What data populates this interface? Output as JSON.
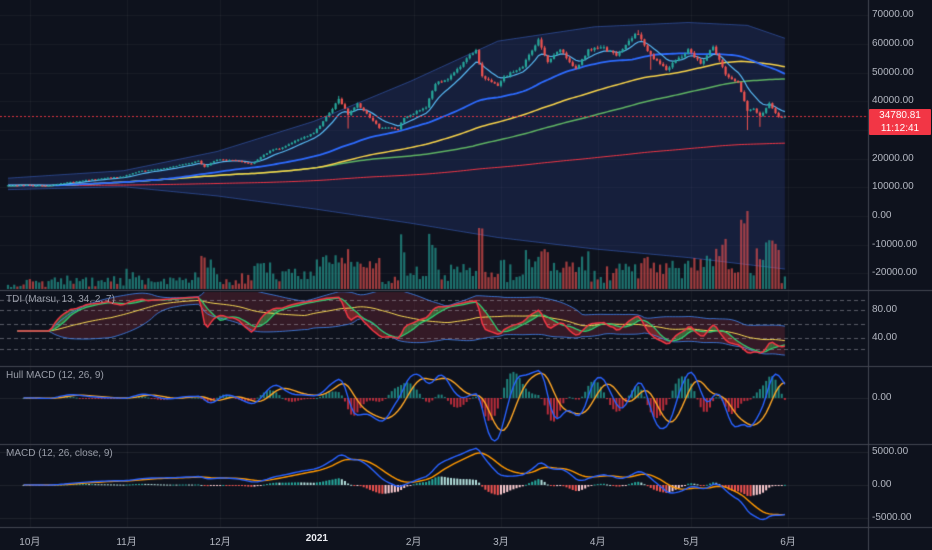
{
  "colors": {
    "background": "#0e121d",
    "up": "#26a69a",
    "down": "#ef5350",
    "accent_red": "#f23645",
    "ma_cyan": "#57b8f2",
    "ma_blue": "#2d6bff",
    "ma_yellow": "#f6d24a",
    "ma_green": "#5fb363",
    "ma_red_slow": "#f23645",
    "band_fill": "rgba(38,58,124,0.33)",
    "band_edge": "rgba(64,110,220,0.5)",
    "macd_blue": "#2962ff",
    "macd_orange": "#ff9800",
    "hull_orange": "#ffa726",
    "tdi_red": "#f23645",
    "tdi_green": "#2ecc71",
    "tdi_yellow": "#f6d854",
    "tdi_band_line": "rgba(66,135,245,0.8)",
    "tdi_band_fill": "rgba(150,45,65,0.28)"
  },
  "price_pane": {
    "last_price": "34780.81",
    "countdown": "11:12:41",
    "axis_ticks": [
      "70000.00",
      "60000.00",
      "50000.00",
      "40000.00",
      "30000.00",
      "20000.00",
      "10000.00",
      "0.00",
      "-10000.00",
      "-20000.00"
    ]
  },
  "tdi_pane": {
    "title": "TDI (Marsu, 13, 34, 2, 7)",
    "axis_ticks": [
      "80.00",
      "40.00"
    ]
  },
  "hull_pane": {
    "title": "Hull MACD (12, 26, 9)",
    "axis_ticks": [
      "0.00"
    ]
  },
  "macd_pane": {
    "title": "MACD (12, 26, close, 9)",
    "axis_ticks": [
      "5000.00",
      "0.00",
      "-5000.00"
    ]
  },
  "time_axis": {
    "labels": [
      "10月",
      "11月",
      "12月",
      "2021",
      "2月",
      "3月",
      "4月",
      "5月",
      "6月"
    ],
    "day_offsets": [
      7,
      38,
      68,
      99,
      130,
      158,
      189,
      219,
      250
    ]
  },
  "chart_data": [
    {
      "type": "candlestick",
      "pane": "price",
      "last_price": 34780.81,
      "y_ticks": [
        70000,
        60000,
        50000,
        40000,
        30000,
        20000,
        10000,
        0,
        -10000,
        -20000
      ],
      "num_candles": 250,
      "price_path": [
        [
          0,
          10650
        ],
        [
          6,
          10780
        ],
        [
          7,
          10600
        ],
        [
          13,
          10670
        ],
        [
          18,
          11530
        ],
        [
          27,
          12800
        ],
        [
          37,
          13800
        ],
        [
          42,
          15600
        ],
        [
          49,
          16300
        ],
        [
          55,
          17800
        ],
        [
          61,
          19100
        ],
        [
          63,
          17150
        ],
        [
          67,
          19700
        ],
        [
          73,
          19350
        ],
        [
          78,
          18050
        ],
        [
          84,
          22800
        ],
        [
          87,
          23500
        ],
        [
          93,
          26500
        ],
        [
          98,
          29000
        ],
        [
          101,
          33000
        ],
        [
          106,
          40600
        ],
        [
          109,
          35500
        ],
        [
          112,
          39200
        ],
        [
          119,
          30900
        ],
        [
          125,
          30400
        ],
        [
          127,
          34300
        ],
        [
          134,
          38100
        ],
        [
          137,
          46400
        ],
        [
          141,
          47500
        ],
        [
          148,
          55900
        ],
        [
          150,
          57500
        ],
        [
          152,
          48800
        ],
        [
          157,
          45200
        ],
        [
          159,
          48500
        ],
        [
          165,
          52400
        ],
        [
          170,
          61200
        ],
        [
          173,
          53900
        ],
        [
          177,
          58100
        ],
        [
          182,
          51300
        ],
        [
          186,
          57800
        ],
        [
          190,
          59000
        ],
        [
          195,
          56000
        ],
        [
          201,
          63500
        ],
        [
          202,
          63100
        ],
        [
          206,
          56200
        ],
        [
          211,
          51100
        ],
        [
          214,
          54000
        ],
        [
          218,
          57750
        ],
        [
          222,
          53200
        ],
        [
          226,
          58900
        ],
        [
          230,
          49500
        ],
        [
          234,
          46400
        ],
        [
          237,
          36700
        ],
        [
          239,
          37300
        ],
        [
          241,
          34700
        ],
        [
          244,
          39300
        ],
        [
          247,
          34600
        ],
        [
          249,
          34780.81
        ]
      ],
      "band_upper": [
        [
          0,
          13200
        ],
        [
          37,
          15800
        ],
        [
          67,
          22500
        ],
        [
          98,
          33000
        ],
        [
          129,
          47000
        ],
        [
          157,
          61000
        ],
        [
          188,
          66000
        ],
        [
          218,
          67500
        ],
        [
          237,
          66500
        ],
        [
          249,
          62000
        ]
      ],
      "band_lower": [
        [
          0,
          9200
        ],
        [
          37,
          10200
        ],
        [
          67,
          7000
        ],
        [
          98,
          2500
        ],
        [
          129,
          -2500
        ],
        [
          157,
          -7500
        ],
        [
          188,
          -11500
        ],
        [
          218,
          -14500
        ],
        [
          249,
          -18500
        ]
      ],
      "overlays": [
        "fast EMA (cyan)",
        "SMA 50 (blue)",
        "SMA 100 (yellow)",
        "SMA 150 (green)",
        "slow baseline (red)",
        "volatility band (navy fill)",
        "volume histogram"
      ],
      "volume_spike_day": 237
    },
    {
      "type": "line",
      "pane": "tdi",
      "title": "TDI (Marsu, 13, 34, 2, 7)",
      "params": {
        "rsi": 13,
        "fast": 2,
        "slow": 7,
        "base": 34
      },
      "levels_dashed": [
        95,
        80,
        60,
        40,
        25
      ],
      "y_ticks": [
        80,
        40
      ],
      "derived_from": "price_path"
    },
    {
      "type": "line+histogram",
      "pane": "hull_macd",
      "title": "Hull MACD (12, 26, 9)",
      "params": [
        12,
        26,
        9
      ],
      "y_ticks": [
        0
      ],
      "derived_from": "price_path"
    },
    {
      "type": "line+histogram",
      "pane": "macd",
      "title": "MACD (12, 26, close, 9)",
      "params": [
        12,
        26,
        9
      ],
      "y_ticks": [
        5000,
        0,
        -5000
      ],
      "derived_from": "price_path"
    }
  ]
}
